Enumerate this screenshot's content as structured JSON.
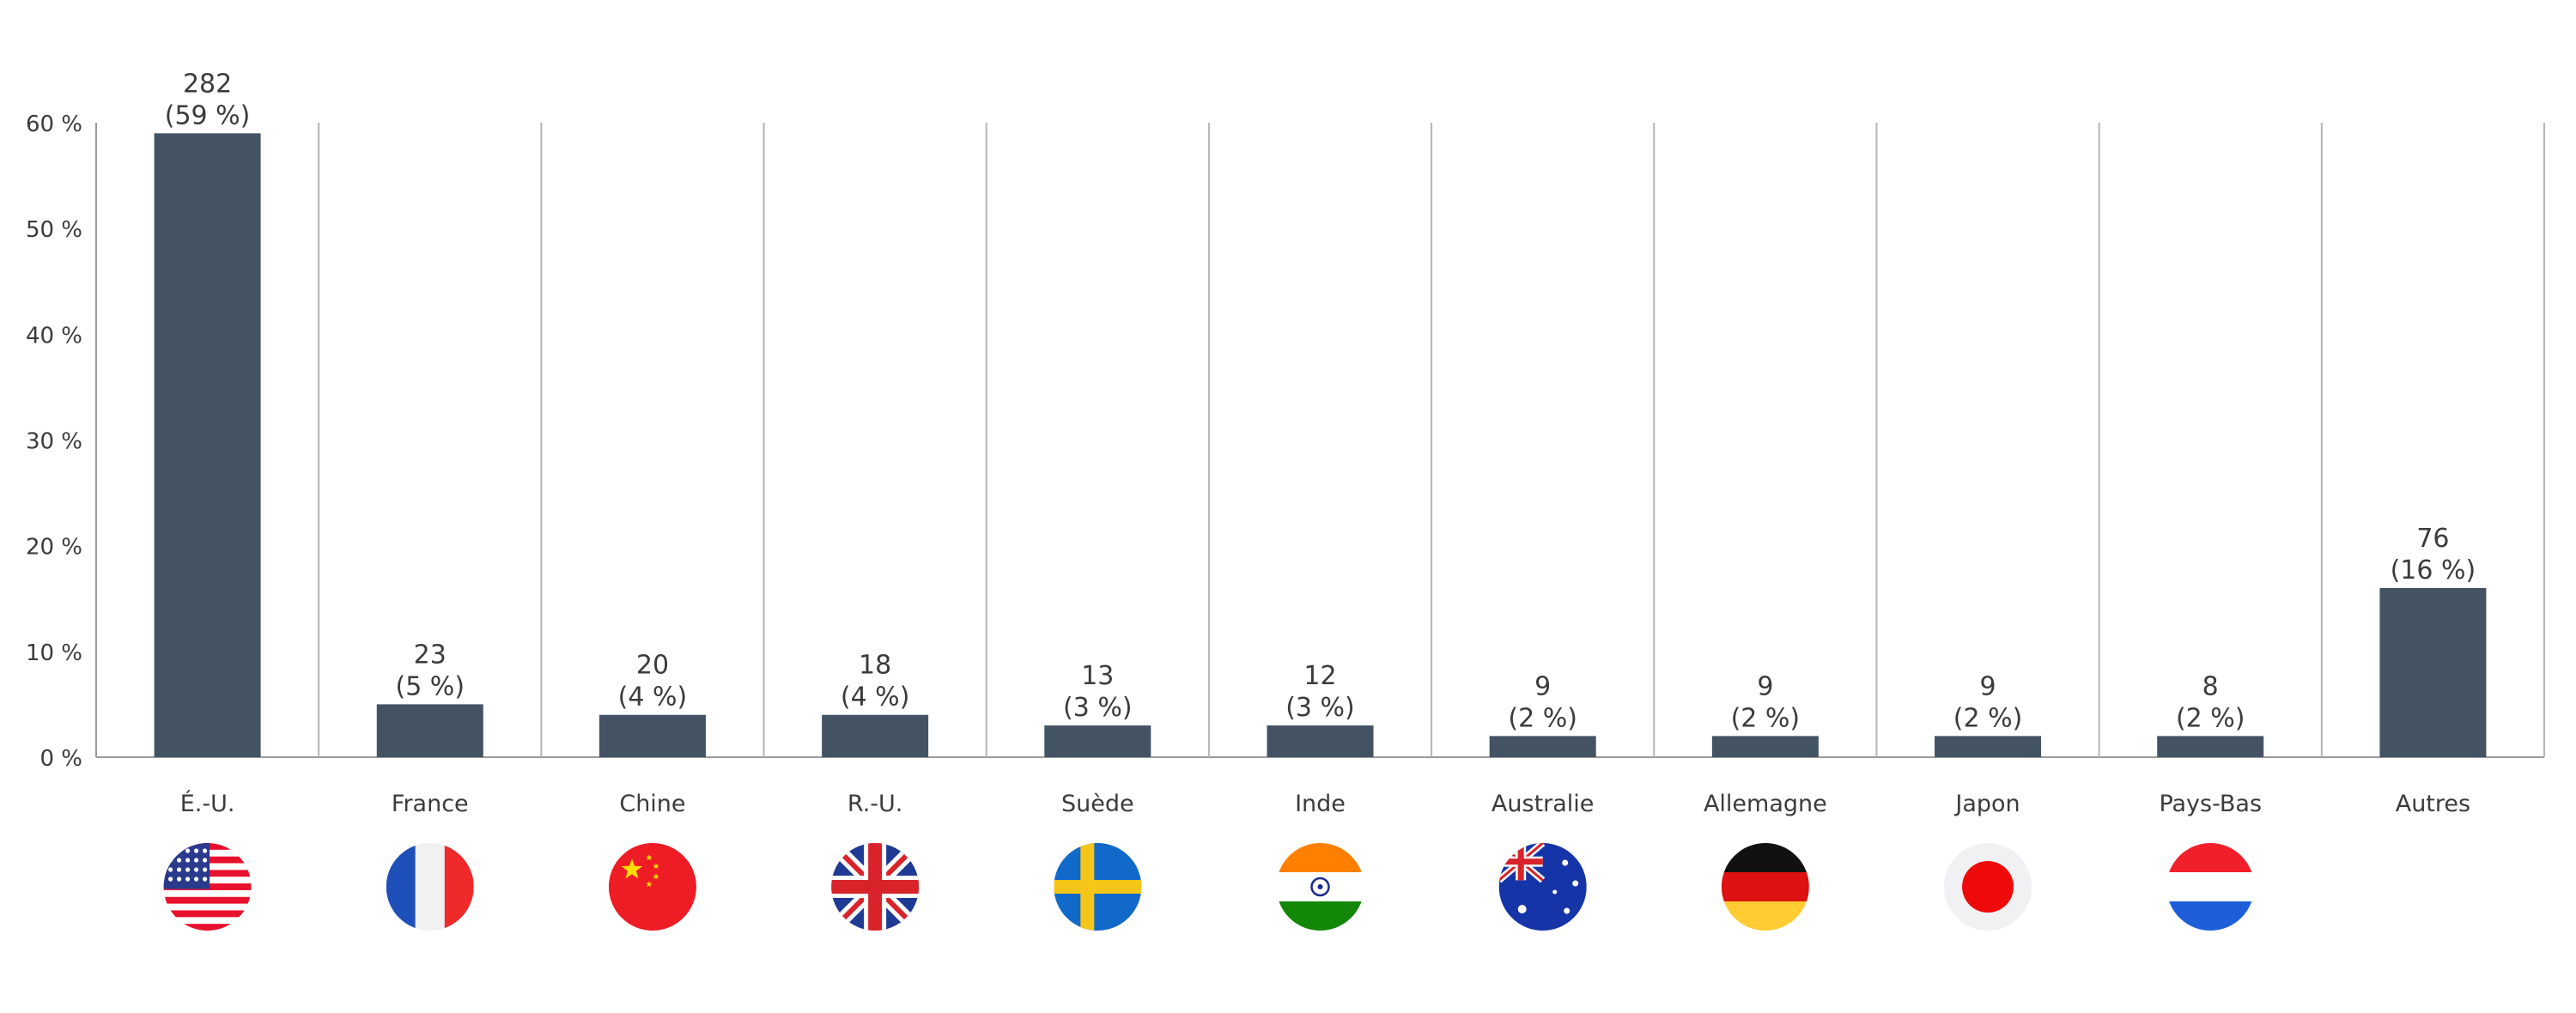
{
  "chart_data": {
    "type": "bar",
    "categories": [
      "É.-U.",
      "France",
      "Chine",
      "R.-U.",
      "Suède",
      "Inde",
      "Australie",
      "Allemagne",
      "Japon",
      "Pays-Bas",
      "Autres"
    ],
    "values": [
      59,
      5,
      4,
      4,
      3,
      3,
      2,
      2,
      2,
      2,
      16
    ],
    "value_labels": [
      "282",
      "23",
      "20",
      "18",
      "13",
      "12",
      "9",
      "9",
      "9",
      "8",
      "76"
    ],
    "percent_labels": [
      "(59 %)",
      "(5 %)",
      "(4 %)",
      "(4 %)",
      "(3 %)",
      "(3 %)",
      "(2 %)",
      "(2 %)",
      "(2 %)",
      "(2 %)",
      "(16 %)"
    ],
    "y_ticks": [
      "0 %",
      "10 %",
      "20 %",
      "30 %",
      "40 %",
      "50 %",
      "60 %"
    ],
    "ylim": [
      0,
      60
    ],
    "grid": false,
    "legend": "none",
    "title": "",
    "xlabel": "",
    "ylabel": "",
    "flags": [
      "us-flag-icon",
      "france-flag-icon",
      "china-flag-icon",
      "uk-flag-icon",
      "sweden-flag-icon",
      "india-flag-icon",
      "australia-flag-icon",
      "germany-flag-icon",
      "japan-flag-icon",
      "netherlands-flag-icon",
      "none"
    ],
    "colors": {
      "bar": "#435364",
      "axis": "#9a9a9a",
      "separator": "#b5b5b5",
      "text": "#3b3b3b"
    }
  }
}
